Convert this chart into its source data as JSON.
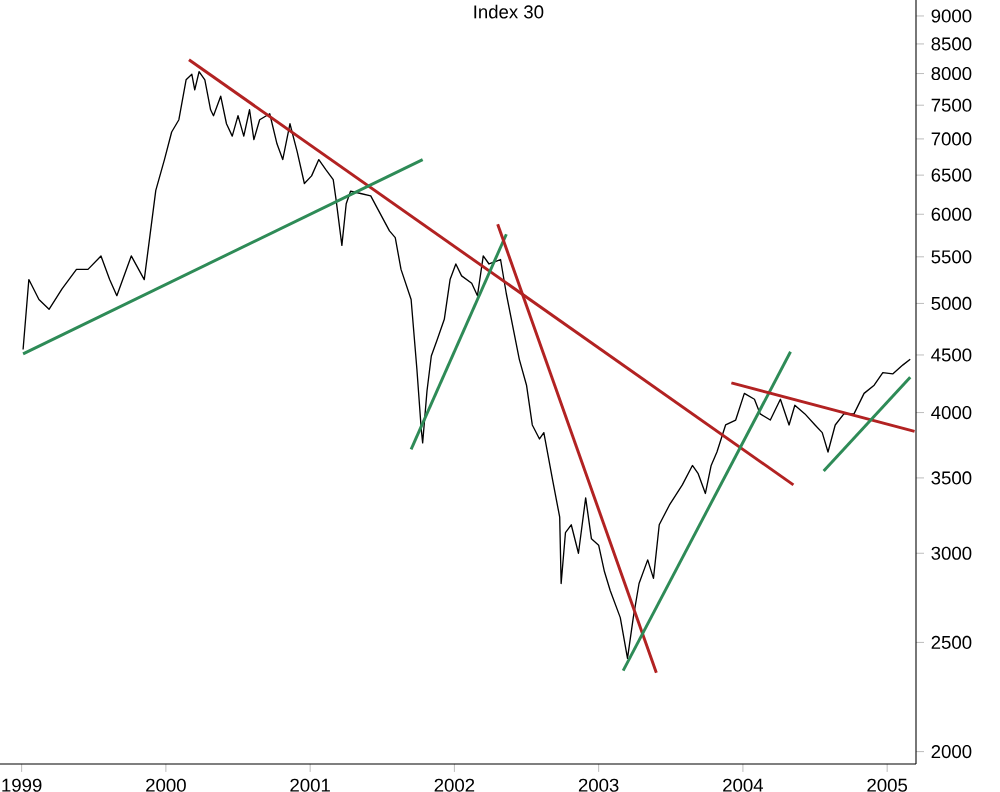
{
  "chart_data": {
    "type": "line",
    "title": "Index 30",
    "log": "y",
    "xlim": [
      1998.85,
      2005.2
    ],
    "ylim": [
      1950,
      9300
    ],
    "xticks": [
      1999,
      2000,
      2001,
      2002,
      2003,
      2004,
      2005
    ],
    "yticks": [
      2000,
      2500,
      3000,
      3500,
      4000,
      4500,
      5000,
      5500,
      6000,
      6500,
      7000,
      7500,
      8000,
      8500,
      9000
    ],
    "grid": false,
    "marker": "none",
    "series": [
      {
        "color": "#000000",
        "x": [
          1999.01,
          1999.05,
          1999.12,
          1999.19,
          1999.28,
          1999.38,
          1999.46,
          1999.55,
          1999.61,
          1999.66,
          1999.76,
          1999.85,
          1999.89,
          1999.93,
          1999.99,
          2000.04,
          2000.09,
          2000.14,
          2000.18,
          2000.2,
          2000.23,
          2000.27,
          2000.31,
          2000.33,
          2000.38,
          2000.42,
          2000.46,
          2000.5,
          2000.54,
          2000.58,
          2000.61,
          2000.65,
          2000.72,
          2000.77,
          2000.81,
          2000.86,
          2000.91,
          2000.96,
          2001.01,
          2001.06,
          2001.11,
          2001.16,
          2001.18,
          2001.22,
          2001.25,
          2001.28,
          2001.35,
          2001.42,
          2001.47,
          2001.55,
          2001.59,
          2001.63,
          2001.7,
          2001.74,
          2001.77,
          2001.78,
          2001.81,
          2001.84,
          2001.88,
          2001.93,
          2001.97,
          2002.01,
          2002.05,
          2002.12,
          2002.16,
          2002.2,
          2002.24,
          2002.32,
          2002.36,
          2002.45,
          2002.5,
          2002.54,
          2002.59,
          2002.62,
          2002.68,
          2002.73,
          2002.74,
          2002.77,
          2002.81,
          2002.86,
          2002.91,
          2002.95,
          2003.0,
          2003.04,
          2003.08,
          2003.15,
          2003.2,
          2003.24,
          2003.28,
          2003.34,
          2003.38,
          2003.42,
          2003.49,
          2003.58,
          2003.65,
          2003.69,
          2003.74,
          2003.78,
          2003.82,
          2003.88,
          2003.95,
          2004.01,
          2004.08,
          2004.12,
          2004.19,
          2004.26,
          2004.32,
          2004.36,
          2004.43,
          2004.5,
          2004.55,
          2004.59,
          2004.64,
          2004.7,
          2004.77,
          2004.84,
          2004.91,
          2004.97,
          2005.04,
          2005.11,
          2005.16
        ],
        "values": [
          4550,
          5250,
          5040,
          4940,
          5150,
          5360,
          5360,
          5510,
          5250,
          5080,
          5510,
          5250,
          5750,
          6300,
          6710,
          7100,
          7280,
          7900,
          7990,
          7740,
          8030,
          7900,
          7430,
          7340,
          7640,
          7220,
          7040,
          7340,
          7040,
          7430,
          6990,
          7280,
          7370,
          6930,
          6710,
          7220,
          6820,
          6390,
          6490,
          6710,
          6570,
          6440,
          6180,
          5630,
          6130,
          6290,
          6260,
          6230,
          6060,
          5800,
          5720,
          5360,
          5040,
          4370,
          3870,
          3760,
          4180,
          4490,
          4640,
          4840,
          5250,
          5420,
          5290,
          5210,
          5080,
          5510,
          5420,
          5470,
          5100,
          4460,
          4230,
          3900,
          3790,
          3840,
          3490,
          3230,
          2820,
          3130,
          3180,
          3000,
          3360,
          3090,
          3050,
          2890,
          2780,
          2630,
          2420,
          2630,
          2820,
          2960,
          2850,
          3180,
          3310,
          3450,
          3590,
          3530,
          3390,
          3590,
          3690,
          3900,
          3940,
          4160,
          4110,
          3990,
          3940,
          4110,
          3900,
          4060,
          3990,
          3900,
          3840,
          3690,
          3900,
          3990,
          3990,
          4160,
          4230,
          4340,
          4330,
          4410,
          4460
        ]
      },
      {
        "color": "#b22222",
        "x": [
          2000.16,
          2004.35
        ],
        "values": [
          8230,
          3450
        ]
      },
      {
        "color": "#2e8b57",
        "x": [
          1999.01,
          2001.78
        ],
        "values": [
          4510,
          6710
        ]
      },
      {
        "color": "#2e8b57",
        "x": [
          2001.7,
          2002.36
        ],
        "values": [
          3710,
          5760
        ]
      },
      {
        "color": "#b22222",
        "x": [
          2002.3,
          2003.4
        ],
        "values": [
          5880,
          2350
        ]
      },
      {
        "color": "#2e8b57",
        "x": [
          2003.17,
          2004.33
        ],
        "values": [
          2360,
          4530
        ]
      },
      {
        "color": "#b22222",
        "x": [
          2003.92,
          2005.19
        ],
        "values": [
          4250,
          3850
        ]
      },
      {
        "color": "#2e8b57",
        "x": [
          2004.56,
          2005.16
        ],
        "values": [
          3550,
          4300
        ]
      }
    ]
  }
}
